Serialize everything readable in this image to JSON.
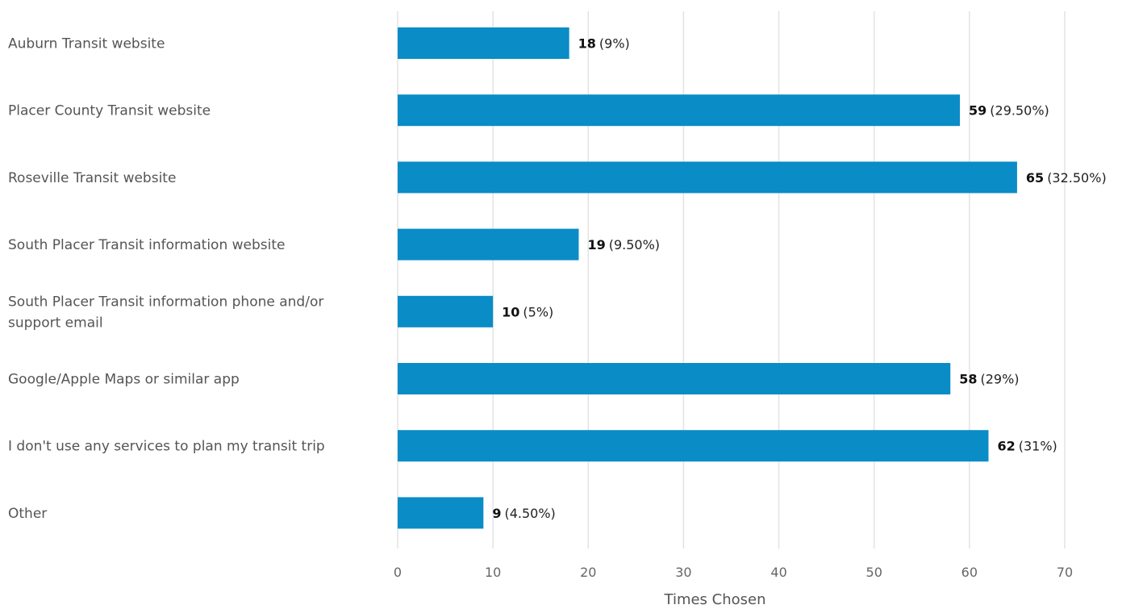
{
  "chart_data": {
    "type": "bar",
    "orientation": "horizontal",
    "categories": [
      "Auburn Transit website",
      "Placer County Transit website",
      "Roseville Transit website",
      "South Placer Transit information website",
      "South Placer Transit information phone and/or support email",
      "Google/Apple Maps or similar app",
      "I don't use any services to plan my transit trip",
      "Other"
    ],
    "values": [
      18,
      59,
      65,
      19,
      10,
      58,
      62,
      9
    ],
    "value_labels": [
      "18",
      "59",
      "65",
      "19",
      "10",
      "58",
      "62",
      "9"
    ],
    "percent_labels": [
      "(9%)",
      "(29.50%)",
      "(32.50%)",
      "(9.50%)",
      "(5%)",
      "(29%)",
      "(31%)",
      "(4.50%)"
    ],
    "xlabel": "Times Chosen",
    "xlim": [
      0,
      70
    ],
    "xticks": [
      "0",
      "10",
      "20",
      "30",
      "40",
      "50",
      "60",
      "70"
    ],
    "grid": "vertical",
    "bar_color": "#0a8cc6",
    "legend": "none"
  }
}
